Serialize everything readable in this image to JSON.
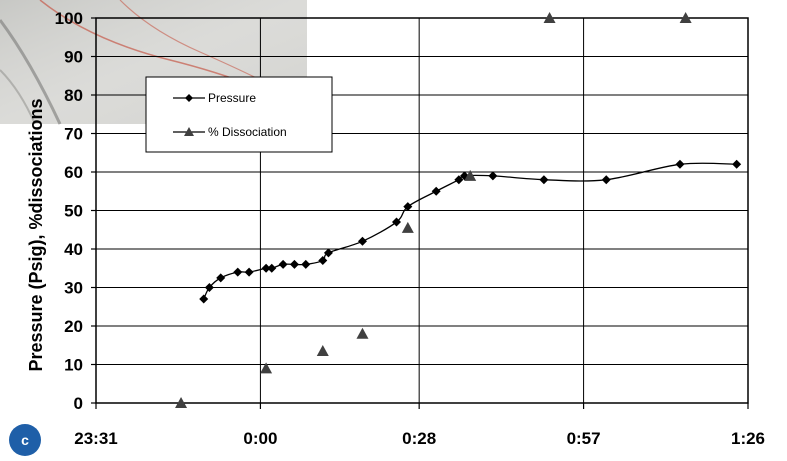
{
  "panel_label": "c",
  "colors": {
    "series_pressure": "#000000",
    "series_dissociation": "#404040",
    "badge": "#1f5fa8"
  },
  "chart_data": {
    "type": "scatter",
    "title": "",
    "xlabel": "",
    "ylabel": "Pressure (Psig), %dissociations",
    "ylim": [
      0,
      100
    ],
    "yticks": [
      0,
      10,
      20,
      30,
      40,
      50,
      60,
      70,
      80,
      90,
      100
    ],
    "xlim_minutes": [
      -29,
      86
    ],
    "xticks": [
      {
        "minute": -29,
        "label": "23:31"
      },
      {
        "minute": 0,
        "label": "0:00"
      },
      {
        "minute": 28,
        "label": "0:28"
      },
      {
        "minute": 57,
        "label": "0:57"
      },
      {
        "minute": 86,
        "label": "1:26"
      }
    ],
    "grid": true,
    "legend_position": "top-left",
    "series": [
      {
        "name": "Pressure",
        "marker": "diamond",
        "line": "smooth",
        "x_minutes": [
          -10,
          -9,
          -7,
          -4,
          -2,
          1,
          2,
          4,
          6,
          8,
          11,
          12,
          18,
          24,
          26,
          31,
          35,
          36,
          41,
          50,
          61,
          74,
          84
        ],
        "y": [
          27,
          30,
          32.5,
          34,
          34,
          35,
          35,
          36,
          36,
          36,
          37,
          39,
          42,
          47,
          51,
          55,
          58,
          59,
          59,
          58,
          58,
          62,
          62
        ]
      },
      {
        "name": "% Dissociation",
        "marker": "triangle",
        "line": "none",
        "x_minutes": [
          -14,
          1,
          11,
          18,
          26,
          37,
          51,
          75
        ],
        "y": [
          0,
          9,
          13.5,
          18,
          45.5,
          59,
          100,
          100
        ]
      }
    ]
  }
}
